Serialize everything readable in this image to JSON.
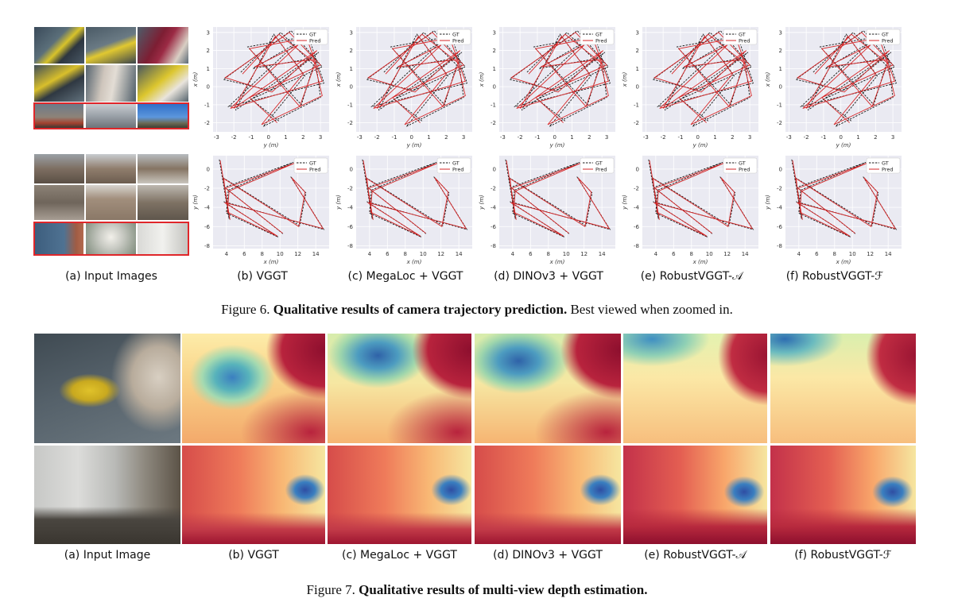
{
  "figure6": {
    "number": "Figure 6.",
    "title_bold": "Qualitative results of camera trajectory prediction.",
    "title_rest": " Best viewed when zoomed in.",
    "panel_labels": [
      "(a) Input Images",
      "(b) VGGT",
      "(c) MegaLoc + VGGT",
      "(d) DINOv3 + VGGT",
      "(e) RobustVGGT-𝒜",
      "(f) RobustVGGT-ℱ"
    ],
    "legend": {
      "gt": "GT",
      "pred": "Pred"
    },
    "colors": {
      "gt": "#1a1a1a",
      "pred": "#d62728",
      "plot_bg": "#eaeaf2",
      "redbox": "#e0262a"
    }
  },
  "figure7": {
    "number": "Figure 7.",
    "title_bold": "Qualitative results of multi-view depth estimation.",
    "panel_labels": [
      "(a) Input Image",
      "(b) VGGT",
      "(c) MegaLoc + VGGT",
      "(d) DINOv3 + VGGT",
      "(e) RobustVGGT-𝒜",
      "(f) RobustVGGT-ℱ"
    ]
  },
  "chart_data": [
    {
      "type": "line",
      "panel": "row1",
      "xlabel": "y (m)",
      "ylabel": "x (m)",
      "xticks": [
        -3,
        -2,
        -1,
        0,
        1,
        2,
        3
      ],
      "yticks": [
        -2,
        -1,
        0,
        1,
        2,
        3
      ],
      "xlim": [
        -3.2,
        3.5
      ],
      "ylim": [
        -2.5,
        3.3
      ],
      "series": [
        {
          "name": "GT",
          "style": "dashed",
          "x": [
            -1.6,
            0.7,
            2.6,
            1.9,
            -1.2,
            2.3,
            3.2,
            -2.3,
            1.6,
            -0.9,
            2.7,
            3.0,
            -0.3,
            2.1,
            0.3,
            -1.9,
            2.9,
            0.1,
            -2.6,
            1.3,
            3.1,
            -1.0,
            0.6
          ],
          "y": [
            0.8,
            3.0,
            1.2,
            -1.0,
            2.2,
            2.8,
            0.2,
            -1.1,
            2.4,
            1.0,
            1.6,
            -0.6,
            -2.2,
            0.6,
            2.9,
            -1.3,
            1.9,
            -0.2,
            0.4,
            3.1,
            1.1,
            -0.7,
            -1.9
          ]
        },
        {
          "name": "Pred",
          "style": "solid",
          "x": [
            -1.5,
            0.6,
            2.7,
            1.8,
            -1.1,
            2.2,
            3.1,
            -2.2,
            1.7,
            -0.8,
            2.6,
            3.1,
            -0.4,
            2.0,
            0.4,
            -2.0,
            2.8,
            0.2,
            -2.5,
            1.2,
            3.0,
            -1.1,
            0.5
          ],
          "y": [
            0.7,
            2.9,
            1.3,
            -1.1,
            2.1,
            2.7,
            0.3,
            -1.2,
            2.3,
            1.1,
            1.5,
            -0.5,
            -2.1,
            0.7,
            2.8,
            -1.2,
            2.0,
            -0.3,
            0.5,
            3.0,
            1.2,
            -0.6,
            -2.0
          ]
        }
      ]
    },
    {
      "type": "line",
      "panel": "row2",
      "xlabel": "x (m)",
      "ylabel": "y (m)",
      "xticks": [
        4,
        6,
        8,
        10,
        12,
        14
      ],
      "yticks": [
        -8,
        -6,
        -4,
        -2,
        0
      ],
      "xlim": [
        2.5,
        15.5
      ],
      "ylim": [
        -8.3,
        1.4
      ],
      "series": [
        {
          "name": "GT",
          "style": "dashed",
          "x": [
            3.2,
            4.3,
            4.0,
            3.6,
            12.2,
            12.9,
            11.2,
            14.9,
            3.7,
            9.8,
            4.0,
            4.2,
            11.5,
            3.8,
            10.4
          ],
          "y": [
            1.0,
            -5.2,
            -2.8,
            -0.9,
            -5.9,
            -2.5,
            -0.8,
            -6.3,
            -3.4,
            -7.1,
            -4.6,
            -2.2,
            0.7,
            -1.9,
            -6.8
          ]
        },
        {
          "name": "Pred",
          "style": "solid",
          "x": [
            3.3,
            4.4,
            3.9,
            3.7,
            12.1,
            12.8,
            11.3,
            14.8,
            3.8,
            9.7,
            4.1,
            4.3,
            11.6,
            3.9,
            10.3
          ],
          "y": [
            0.9,
            -5.3,
            -2.7,
            -1.0,
            -6.0,
            -2.4,
            -0.9,
            -6.2,
            -3.5,
            -7.0,
            -4.5,
            -2.3,
            0.6,
            -2.0,
            -6.7
          ]
        }
      ]
    }
  ]
}
